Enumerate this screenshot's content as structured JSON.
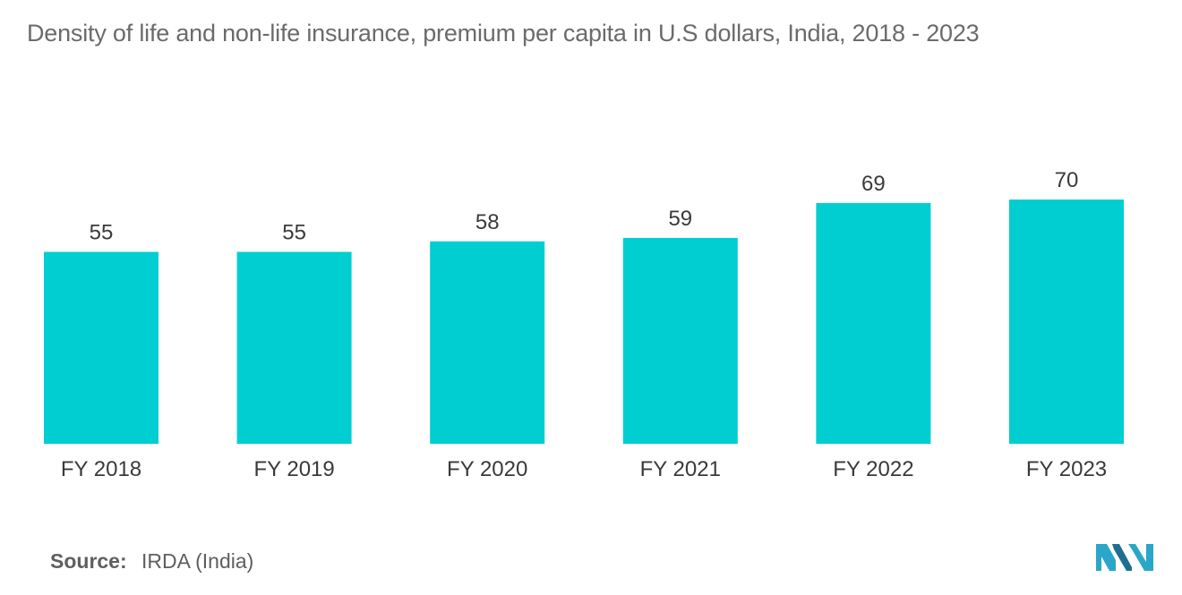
{
  "chart_data": {
    "type": "bar",
    "title": "Density of life and non-life insurance, premium per capita in U.S dollars, India, 2018 - 2023",
    "categories": [
      "FY 2018",
      "FY 2019",
      "FY 2020",
      "FY 2021",
      "FY 2022",
      "FY 2023"
    ],
    "values": [
      55,
      55,
      58,
      59,
      69,
      70
    ],
    "value_labels": [
      "55",
      "55",
      "58",
      "59",
      "69",
      "70"
    ],
    "xlabel": "",
    "ylabel": "",
    "ylim": [
      0,
      70
    ],
    "grid": false,
    "legend": "none",
    "bar_color": "#00ced1"
  },
  "source": {
    "label": "Source:",
    "text": "IRDA (India)"
  },
  "logo": {
    "icon": "mordor-intelligence-logo-icon",
    "colors": [
      "#2aa6c9",
      "#1f6e91"
    ]
  }
}
